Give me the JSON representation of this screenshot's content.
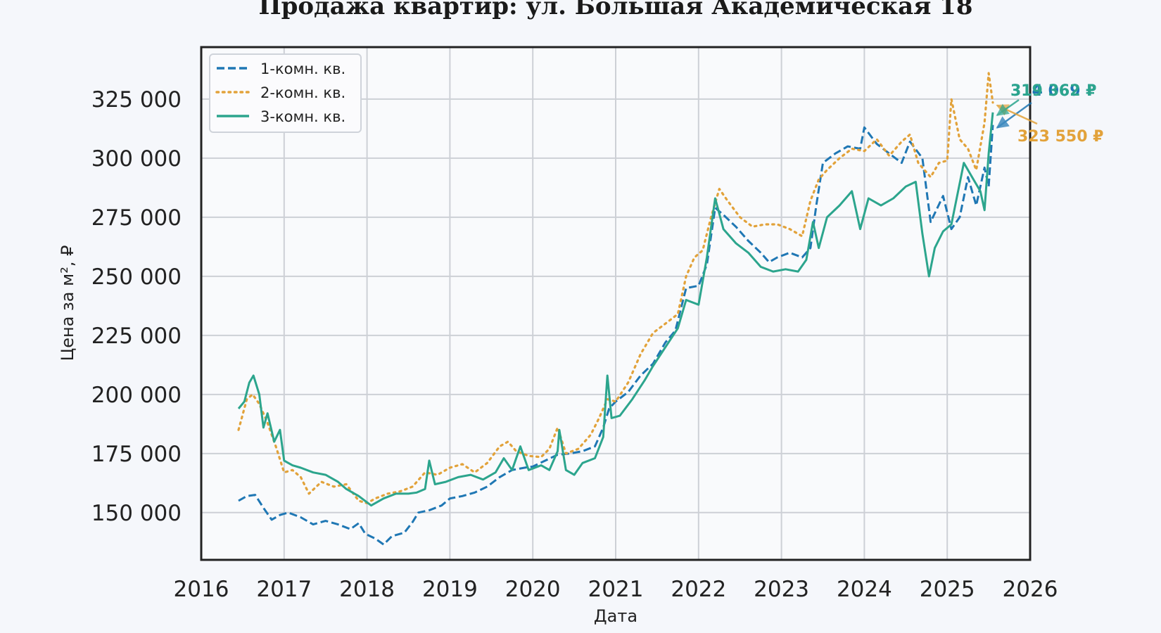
{
  "chart_data": {
    "type": "line",
    "title": "Продажа квартир: ул. Большая Академическая 18",
    "xlabel": "Дата",
    "ylabel": "Цена за м², ₽",
    "xlim": [
      2016.0,
      2026.0
    ],
    "ylim": [
      130000,
      347000
    ],
    "x_ticks": [
      2016,
      2017,
      2018,
      2019,
      2020,
      2021,
      2022,
      2023,
      2024,
      2025,
      2026
    ],
    "x_tick_labels": [
      "2016",
      "2017",
      "2018",
      "2019",
      "2020",
      "2021",
      "2022",
      "2023",
      "2024",
      "2025",
      "2026"
    ],
    "y_ticks": [
      150000,
      175000,
      200000,
      225000,
      250000,
      275000,
      300000,
      325000
    ],
    "y_tick_labels": [
      "150 000",
      "175 000",
      "200 000",
      "225 000",
      "250 000",
      "275 000",
      "300 000",
      "325 000"
    ],
    "grid": true,
    "legend_position": "top-left",
    "series": [
      {
        "name": "1-комн. кв.",
        "color": "#1f77b4",
        "style": "dashed",
        "end_label": "314 069 ₽",
        "points": [
          [
            2016.45,
            155000
          ],
          [
            2016.55,
            157000
          ],
          [
            2016.65,
            157500
          ],
          [
            2016.75,
            152000
          ],
          [
            2016.85,
            147000
          ],
          [
            2016.95,
            149000
          ],
          [
            2017.05,
            150000
          ],
          [
            2017.2,
            148000
          ],
          [
            2017.35,
            145000
          ],
          [
            2017.5,
            146500
          ],
          [
            2017.65,
            145000
          ],
          [
            2017.8,
            143000
          ],
          [
            2017.9,
            145500
          ],
          [
            2017.98,
            141000
          ],
          [
            2018.1,
            139000
          ],
          [
            2018.2,
            136500
          ],
          [
            2018.3,
            140000
          ],
          [
            2018.45,
            141500
          ],
          [
            2018.55,
            146000
          ],
          [
            2018.62,
            150000
          ],
          [
            2018.75,
            151000
          ],
          [
            2018.9,
            153000
          ],
          [
            2019.0,
            156000
          ],
          [
            2019.15,
            157000
          ],
          [
            2019.3,
            158500
          ],
          [
            2019.45,
            161000
          ],
          [
            2019.6,
            165000
          ],
          [
            2019.75,
            168000
          ],
          [
            2019.9,
            169000
          ],
          [
            2020.0,
            169500
          ],
          [
            2020.15,
            172000
          ],
          [
            2020.3,
            174500
          ],
          [
            2020.45,
            175000
          ],
          [
            2020.6,
            176000
          ],
          [
            2020.75,
            178000
          ],
          [
            2020.85,
            186000
          ],
          [
            2020.92,
            194000
          ],
          [
            2021.0,
            197000
          ],
          [
            2021.15,
            201000
          ],
          [
            2021.3,
            208000
          ],
          [
            2021.45,
            213000
          ],
          [
            2021.6,
            222000
          ],
          [
            2021.72,
            227000
          ],
          [
            2021.85,
            245000
          ],
          [
            2022.0,
            246000
          ],
          [
            2022.1,
            255000
          ],
          [
            2022.2,
            279000
          ],
          [
            2022.3,
            276000
          ],
          [
            2022.45,
            271000
          ],
          [
            2022.6,
            265000
          ],
          [
            2022.75,
            260000
          ],
          [
            2022.85,
            256000
          ],
          [
            2022.95,
            258000
          ],
          [
            2023.1,
            260000
          ],
          [
            2023.25,
            258000
          ],
          [
            2023.35,
            262000
          ],
          [
            2023.42,
            280000
          ],
          [
            2023.5,
            298000
          ],
          [
            2023.65,
            302000
          ],
          [
            2023.8,
            305000
          ],
          [
            2023.95,
            304000
          ],
          [
            2024.0,
            313000
          ],
          [
            2024.15,
            306000
          ],
          [
            2024.3,
            302000
          ],
          [
            2024.45,
            298000
          ],
          [
            2024.55,
            307000
          ],
          [
            2024.7,
            300000
          ],
          [
            2024.8,
            273000
          ],
          [
            2024.95,
            284000
          ],
          [
            2025.05,
            270000
          ],
          [
            2025.15,
            275000
          ],
          [
            2025.25,
            292000
          ],
          [
            2025.35,
            280000
          ],
          [
            2025.45,
            296000
          ],
          [
            2025.5,
            288000
          ],
          [
            2025.55,
            314069
          ]
        ]
      },
      {
        "name": "2-комн. кв.",
        "color": "#e2a23a",
        "style": "dotted",
        "end_label": "323 550 ₽",
        "points": [
          [
            2016.45,
            185000
          ],
          [
            2016.55,
            198000
          ],
          [
            2016.62,
            200000
          ],
          [
            2016.7,
            196000
          ],
          [
            2016.8,
            188000
          ],
          [
            2016.9,
            178000
          ],
          [
            2017.0,
            167000
          ],
          [
            2017.1,
            168000
          ],
          [
            2017.2,
            165000
          ],
          [
            2017.3,
            158000
          ],
          [
            2017.45,
            163000
          ],
          [
            2017.6,
            161000
          ],
          [
            2017.75,
            162000
          ],
          [
            2017.9,
            155000
          ],
          [
            2018.0,
            154000
          ],
          [
            2018.1,
            156000
          ],
          [
            2018.25,
            158000
          ],
          [
            2018.4,
            159000
          ],
          [
            2018.55,
            161000
          ],
          [
            2018.7,
            167000
          ],
          [
            2018.85,
            166000
          ],
          [
            2019.0,
            169000
          ],
          [
            2019.15,
            170500
          ],
          [
            2019.3,
            167000
          ],
          [
            2019.45,
            171000
          ],
          [
            2019.6,
            178000
          ],
          [
            2019.7,
            180000
          ],
          [
            2019.8,
            176000
          ],
          [
            2019.95,
            174000
          ],
          [
            2020.1,
            173500
          ],
          [
            2020.2,
            177000
          ],
          [
            2020.3,
            186000
          ],
          [
            2020.4,
            175000
          ],
          [
            2020.55,
            177000
          ],
          [
            2020.7,
            183000
          ],
          [
            2020.8,
            190000
          ],
          [
            2020.9,
            198000
          ],
          [
            2021.0,
            197000
          ],
          [
            2021.15,
            205000
          ],
          [
            2021.3,
            217000
          ],
          [
            2021.45,
            226000
          ],
          [
            2021.6,
            230000
          ],
          [
            2021.75,
            234000
          ],
          [
            2021.85,
            250000
          ],
          [
            2021.95,
            258000
          ],
          [
            2022.05,
            261000
          ],
          [
            2022.15,
            275000
          ],
          [
            2022.25,
            287000
          ],
          [
            2022.35,
            282000
          ],
          [
            2022.5,
            275000
          ],
          [
            2022.65,
            271000
          ],
          [
            2022.8,
            272000
          ],
          [
            2022.95,
            272000
          ],
          [
            2023.1,
            270000
          ],
          [
            2023.25,
            267000
          ],
          [
            2023.35,
            282000
          ],
          [
            2023.45,
            291000
          ],
          [
            2023.55,
            295000
          ],
          [
            2023.7,
            300000
          ],
          [
            2023.85,
            304000
          ],
          [
            2024.0,
            303000
          ],
          [
            2024.15,
            308000
          ],
          [
            2024.3,
            301000
          ],
          [
            2024.45,
            307000
          ],
          [
            2024.55,
            310000
          ],
          [
            2024.65,
            298000
          ],
          [
            2024.8,
            292000
          ],
          [
            2024.9,
            298000
          ],
          [
            2025.0,
            299000
          ],
          [
            2025.05,
            325000
          ],
          [
            2025.15,
            308000
          ],
          [
            2025.25,
            304000
          ],
          [
            2025.35,
            295000
          ],
          [
            2025.45,
            315000
          ],
          [
            2025.5,
            336000
          ],
          [
            2025.55,
            323550
          ]
        ]
      },
      {
        "name": "3-комн. кв.",
        "color": "#2ca58d",
        "style": "solid",
        "end_label": "319 362 ₽",
        "points": [
          [
            2016.45,
            194000
          ],
          [
            2016.52,
            197000
          ],
          [
            2016.58,
            205000
          ],
          [
            2016.63,
            208000
          ],
          [
            2016.7,
            200000
          ],
          [
            2016.75,
            186000
          ],
          [
            2016.8,
            192000
          ],
          [
            2016.88,
            180000
          ],
          [
            2016.95,
            185000
          ],
          [
            2017.0,
            172000
          ],
          [
            2017.1,
            170000
          ],
          [
            2017.2,
            169000
          ],
          [
            2017.35,
            167000
          ],
          [
            2017.5,
            166000
          ],
          [
            2017.65,
            163000
          ],
          [
            2017.75,
            160000
          ],
          [
            2017.9,
            157000
          ],
          [
            2018.05,
            153000
          ],
          [
            2018.2,
            156000
          ],
          [
            2018.35,
            158000
          ],
          [
            2018.5,
            158000
          ],
          [
            2018.6,
            158500
          ],
          [
            2018.7,
            160000
          ],
          [
            2018.75,
            172000
          ],
          [
            2018.82,
            162000
          ],
          [
            2018.95,
            163000
          ],
          [
            2019.1,
            165000
          ],
          [
            2019.25,
            166000
          ],
          [
            2019.4,
            164000
          ],
          [
            2019.55,
            167000
          ],
          [
            2019.65,
            173000
          ],
          [
            2019.75,
            168000
          ],
          [
            2019.85,
            178000
          ],
          [
            2019.95,
            168000
          ],
          [
            2020.1,
            170000
          ],
          [
            2020.2,
            168000
          ],
          [
            2020.3,
            176000
          ],
          [
            2020.32,
            185000
          ],
          [
            2020.4,
            168000
          ],
          [
            2020.5,
            166000
          ],
          [
            2020.6,
            171000
          ],
          [
            2020.75,
            173000
          ],
          [
            2020.85,
            182000
          ],
          [
            2020.9,
            208000
          ],
          [
            2020.95,
            190000
          ],
          [
            2021.05,
            191000
          ],
          [
            2021.2,
            198000
          ],
          [
            2021.35,
            206000
          ],
          [
            2021.45,
            212000
          ],
          [
            2021.6,
            220000
          ],
          [
            2021.75,
            228000
          ],
          [
            2021.85,
            240000
          ],
          [
            2022.0,
            238000
          ],
          [
            2022.1,
            258000
          ],
          [
            2022.2,
            283000
          ],
          [
            2022.3,
            270000
          ],
          [
            2022.45,
            264000
          ],
          [
            2022.6,
            260000
          ],
          [
            2022.75,
            254000
          ],
          [
            2022.9,
            252000
          ],
          [
            2023.05,
            253000
          ],
          [
            2023.2,
            252000
          ],
          [
            2023.3,
            257000
          ],
          [
            2023.38,
            273000
          ],
          [
            2023.45,
            262000
          ],
          [
            2023.55,
            275000
          ],
          [
            2023.7,
            280000
          ],
          [
            2023.85,
            286000
          ],
          [
            2023.95,
            270000
          ],
          [
            2024.05,
            283000
          ],
          [
            2024.2,
            280000
          ],
          [
            2024.35,
            283000
          ],
          [
            2024.5,
            288000
          ],
          [
            2024.62,
            290000
          ],
          [
            2024.7,
            268000
          ],
          [
            2024.78,
            250000
          ],
          [
            2024.85,
            262000
          ],
          [
            2024.95,
            269000
          ],
          [
            2025.05,
            272000
          ],
          [
            2025.2,
            298000
          ],
          [
            2025.3,
            292000
          ],
          [
            2025.4,
            286000
          ],
          [
            2025.45,
            278000
          ],
          [
            2025.5,
            302000
          ],
          [
            2025.55,
            319362
          ]
        ]
      }
    ]
  }
}
